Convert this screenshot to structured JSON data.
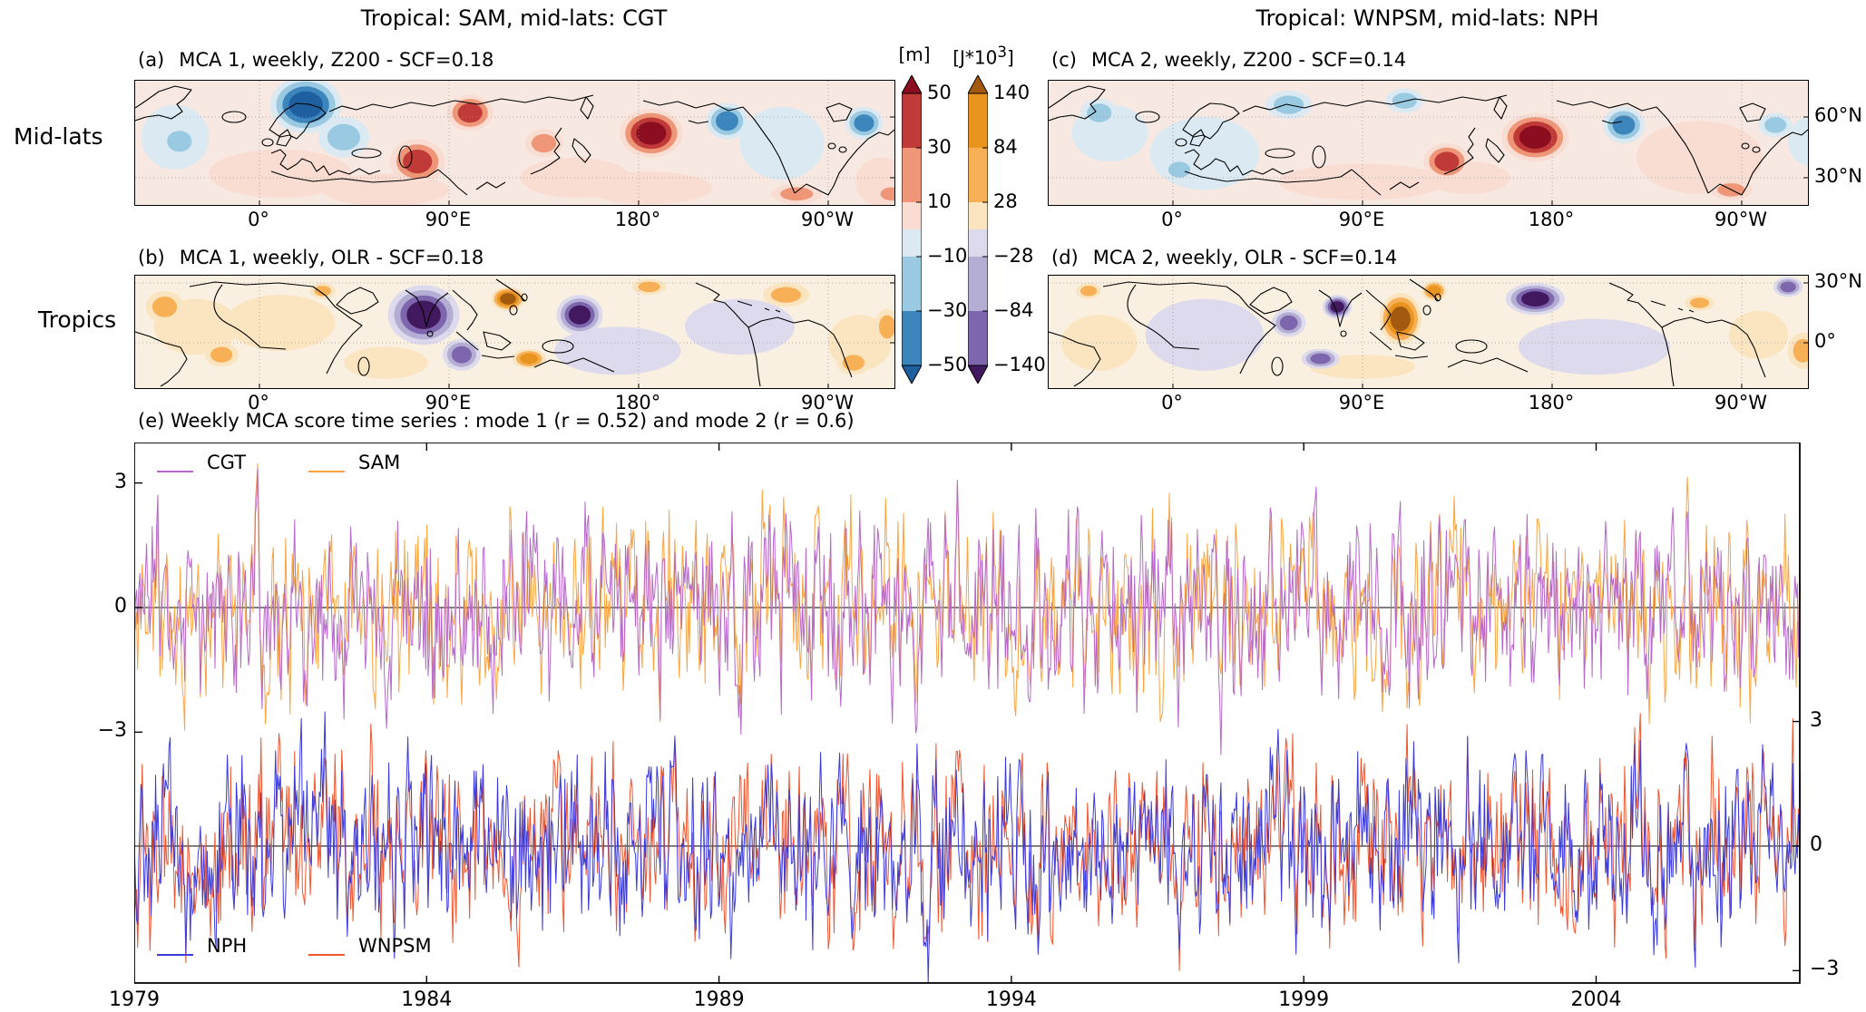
{
  "figure": {
    "left_column_title": "Tropical: SAM, mid-lats: CGT",
    "right_column_title": "Tropical: WNPSM, mid-lats: NPH",
    "row_label_top": "Mid-lats",
    "row_label_bottom": "Tropics"
  },
  "panels": {
    "a": {
      "label": "(a)",
      "title": "MCA 1, weekly, Z200 - SCF=0.18"
    },
    "b": {
      "label": "(b)",
      "title": "MCA 1, weekly, OLR - SCF=0.18"
    },
    "c": {
      "label": "(c)",
      "title": "MCA 2, weekly, Z200 - SCF=0.14"
    },
    "d": {
      "label": "(d)",
      "title": "MCA 2, weekly, OLR - SCF=0.14"
    },
    "e": {
      "title": "(e) Weekly MCA score time series : mode 1 (r = 0.52) and mode 2 (r = 0.6)"
    }
  },
  "colorbars": {
    "z200": {
      "unit": "[m]",
      "ticks": [
        "50",
        "30",
        "10",
        "−10",
        "−30",
        "−50"
      ],
      "band_colors_top_to_bottom": [
        "#8c0d20",
        "#c03a38",
        "#ee9677",
        "#f9ddd3",
        "#dbe9f3",
        "#9ac9e2",
        "#3d85bd",
        "#1e5fa0"
      ]
    },
    "olr": {
      "unit_pre": "[J*10",
      "unit_sup": "3",
      "unit_post": "]",
      "ticks": [
        "140",
        "84",
        "28",
        "−28",
        "−84",
        "−140"
      ],
      "band_colors_top_to_bottom": [
        "#a45a0e",
        "#e8941f",
        "#f7b055",
        "#fbe4c0",
        "#dcdaec",
        "#b5aed4",
        "#7d66ad",
        "#42185e"
      ]
    }
  },
  "chart_data": {
    "type": "composite",
    "maps": [
      {
        "panel": "a",
        "type": "filled_contour_map",
        "variable": "Z200",
        "units": "m",
        "title": "MCA 1, weekly, Z200 - SCF=0.18",
        "scf": 0.18,
        "palette": "z200",
        "row": "midlat",
        "lon_ticks": [
          "0°",
          "90°E",
          "180°",
          "90°W"
        ],
        "lat_ticks": [
          "60°N",
          "30°N"
        ],
        "contour_levels": [
          -50,
          -30,
          -10,
          10,
          30,
          50
        ],
        "anomalies": [
          {
            "lon": -40,
            "lat": 50,
            "rlon": 16,
            "rlat": 16,
            "peak": -5
          },
          {
            "lon": 10,
            "lat": 32,
            "rlon": 34,
            "rlat": 12,
            "peak": 5
          },
          {
            "lon": 60,
            "lat": 24,
            "rlon": 30,
            "rlat": 8,
            "peak": 5
          },
          {
            "lon": 150,
            "lat": 30,
            "rlon": 26,
            "rlat": 10,
            "peak": 5
          },
          {
            "lon": 185,
            "lat": 25,
            "rlon": 30,
            "rlat": 8,
            "peak": 5
          },
          {
            "lon": 248,
            "lat": 47,
            "rlon": 20,
            "rlat": 18,
            "peak": -5
          },
          {
            "lon": 295,
            "lat": 28,
            "rlon": 12,
            "rlat": 12,
            "peak": 5
          },
          {
            "lon": -38,
            "lat": 48,
            "rlon": 9,
            "rlat": 8,
            "peak": -15
          },
          {
            "lon": 40,
            "lat": 50,
            "rlon": 12,
            "rlat": 10,
            "peak": -15
          },
          {
            "lon": 22,
            "lat": 66,
            "rlon": 17,
            "rlat": 14,
            "peak": -55
          },
          {
            "lon": 75,
            "lat": 38,
            "rlon": 13,
            "rlat": 11,
            "peak": 35
          },
          {
            "lon": 100,
            "lat": 62,
            "rlon": 11,
            "rlat": 9,
            "peak": 35
          },
          {
            "lon": 135,
            "lat": 47,
            "rlon": 9,
            "rlat": 7,
            "peak": 15
          },
          {
            "lon": 186,
            "lat": 52,
            "rlon": 15,
            "rlat": 12,
            "peak": 55
          },
          {
            "lon": 222,
            "lat": 58,
            "rlon": 10,
            "rlat": 9,
            "peak": -35
          },
          {
            "lon": 287,
            "lat": 57,
            "rlon": 9,
            "rlat": 8,
            "peak": -35
          },
          {
            "lon": 255,
            "lat": 22,
            "rlon": 12,
            "rlat": 5,
            "peak": 15
          },
          {
            "lon": 300,
            "lat": 22,
            "rlon": 8,
            "rlat": 5,
            "peak": 15
          }
        ]
      },
      {
        "panel": "b",
        "type": "filled_contour_map",
        "variable": "OLR",
        "units": "J*10^3",
        "title": "MCA 1, weekly, OLR - SCF=0.18",
        "scf": 0.18,
        "palette": "olr",
        "row": "tropic",
        "lon_ticks": [
          "0°",
          "90°E",
          "180°",
          "90°W"
        ],
        "lat_ticks": [
          "30°N",
          "0°"
        ],
        "contour_levels": [
          -140,
          -84,
          -28,
          28,
          84,
          140
        ],
        "anomalies": [
          {
            "lon": -30,
            "lat": 8,
            "rlon": 20,
            "rlat": 14,
            "peak": 15
          },
          {
            "lon": 10,
            "lat": 10,
            "rlon": 26,
            "rlat": 14,
            "peak": 15
          },
          {
            "lon": 60,
            "lat": -10,
            "rlon": 20,
            "rlat": 8,
            "peak": 15
          },
          {
            "lon": 170,
            "lat": -4,
            "rlon": 30,
            "rlat": 12,
            "peak": -15
          },
          {
            "lon": 228,
            "lat": 8,
            "rlon": 26,
            "rlat": 14,
            "peak": -15
          },
          {
            "lon": 285,
            "lat": 0,
            "rlon": 15,
            "rlat": 14,
            "peak": 15
          },
          {
            "lon": -45,
            "lat": 18,
            "rlon": 9,
            "rlat": 8,
            "peak": 42
          },
          {
            "lon": -18,
            "lat": -6,
            "rlon": 8,
            "rlat": 6,
            "peak": 42
          },
          {
            "lon": 30,
            "lat": 26,
            "rlon": 6,
            "rlat": 4,
            "peak": 30
          },
          {
            "lon": 78,
            "lat": 14,
            "rlon": 17,
            "rlat": 15,
            "peak": -160
          },
          {
            "lon": 96,
            "lat": -6,
            "rlon": 9,
            "rlat": 8,
            "peak": -90
          },
          {
            "lon": 118,
            "lat": 22,
            "rlon": 8,
            "rlat": 6,
            "peak": 150
          },
          {
            "lon": 128,
            "lat": -8,
            "rlon": 8,
            "rlat": 5,
            "peak": 90
          },
          {
            "lon": 152,
            "lat": 14,
            "rlon": 11,
            "rlat": 10,
            "peak": -150
          },
          {
            "lon": 185,
            "lat": 28,
            "rlon": 8,
            "rlat": 4,
            "peak": 40
          },
          {
            "lon": 250,
            "lat": 24,
            "rlon": 11,
            "rlat": 6,
            "peak": 60
          },
          {
            "lon": 282,
            "lat": -10,
            "rlon": 8,
            "rlat": 6,
            "peak": 60
          },
          {
            "lon": 298,
            "lat": 8,
            "rlon": 6,
            "rlat": 9,
            "peak": 42
          }
        ]
      },
      {
        "panel": "c",
        "type": "filled_contour_map",
        "variable": "Z200",
        "units": "m",
        "title": "MCA 2, weekly, Z200 - SCF=0.14",
        "scf": 0.14,
        "palette": "z200",
        "row": "midlat",
        "lon_ticks": [
          "0°",
          "90°E",
          "180°",
          "90°W"
        ],
        "lat_ticks": [
          "60°N",
          "30°N"
        ],
        "contour_levels": [
          -50,
          -30,
          -10,
          10,
          30,
          50
        ],
        "anomalies": [
          {
            "lon": -30,
            "lat": 52,
            "rlon": 18,
            "rlat": 14,
            "peak": -5
          },
          {
            "lon": 15,
            "lat": 42,
            "rlon": 26,
            "rlat": 18,
            "peak": -5
          },
          {
            "lon": 90,
            "lat": 28,
            "rlon": 40,
            "rlat": 9,
            "peak": 5
          },
          {
            "lon": 140,
            "lat": 30,
            "rlon": 20,
            "rlat": 8,
            "peak": 5
          },
          {
            "lon": 250,
            "lat": 40,
            "rlon": 30,
            "rlat": 18,
            "peak": 5
          },
          {
            "lon": 302,
            "lat": 48,
            "rlon": 10,
            "rlat": 12,
            "peak": -5
          },
          {
            "lon": -35,
            "lat": 62,
            "rlon": 9,
            "rlat": 7,
            "peak": -15
          },
          {
            "lon": 3,
            "lat": 34,
            "rlon": 8,
            "rlat": 6,
            "peak": -15
          },
          {
            "lon": 55,
            "lat": 66,
            "rlon": 11,
            "rlat": 7,
            "peak": -15
          },
          {
            "lon": 110,
            "lat": 68,
            "rlon": 9,
            "rlat": 6,
            "peak": -15
          },
          {
            "lon": 130,
            "lat": 38,
            "rlon": 11,
            "rlat": 9,
            "peak": 40
          },
          {
            "lon": 172,
            "lat": 50,
            "rlon": 16,
            "rlat": 12,
            "peak": 58
          },
          {
            "lon": 214,
            "lat": 56,
            "rlon": 10,
            "rlat": 9,
            "peak": -32
          },
          {
            "lon": 286,
            "lat": 56,
            "rlon": 8,
            "rlat": 6,
            "peak": -15
          },
          {
            "lon": 265,
            "lat": 24,
            "rlon": 10,
            "rlat": 5,
            "peak": 12
          }
        ]
      },
      {
        "panel": "d",
        "type": "filled_contour_map",
        "variable": "OLR",
        "units": "J*10^3",
        "title": "MCA 2, weekly, OLR - SCF=0.14",
        "scf": 0.14,
        "palette": "olr",
        "row": "tropic",
        "lon_ticks": [
          "0°",
          "90°E",
          "180°",
          "90°W"
        ],
        "lat_ticks": [
          "30°N",
          "0°"
        ],
        "contour_levels": [
          -140,
          -84,
          -28,
          28,
          84,
          140
        ],
        "anomalies": [
          {
            "lon": -35,
            "lat": 0,
            "rlon": 18,
            "rlat": 14,
            "peak": 15
          },
          {
            "lon": 15,
            "lat": 4,
            "rlon": 28,
            "rlat": 18,
            "peak": -15
          },
          {
            "lon": 90,
            "lat": -12,
            "rlon": 25,
            "rlat": 6,
            "peak": 15
          },
          {
            "lon": 200,
            "lat": -2,
            "rlon": 36,
            "rlat": 14,
            "peak": -15
          },
          {
            "lon": 278,
            "lat": 4,
            "rlon": 14,
            "rlat": 12,
            "peak": 15
          },
          {
            "lon": -40,
            "lat": 26,
            "rlon": 6,
            "rlat": 4,
            "peak": 30
          },
          {
            "lon": 55,
            "lat": 10,
            "rlon": 8,
            "rlat": 7,
            "peak": -90
          },
          {
            "lon": 78,
            "lat": 18,
            "rlon": 7,
            "rlat": 6,
            "peak": -160
          },
          {
            "lon": 70,
            "lat": -8,
            "rlon": 9,
            "rlat": 5,
            "peak": -90
          },
          {
            "lon": 108,
            "lat": 12,
            "rlon": 10,
            "rlat": 13,
            "peak": 150
          },
          {
            "lon": 124,
            "lat": 26,
            "rlon": 6,
            "rlat": 5,
            "peak": 90
          },
          {
            "lon": 172,
            "lat": 22,
            "rlon": 14,
            "rlat": 8,
            "peak": -170
          },
          {
            "lon": 250,
            "lat": 20,
            "rlon": 7,
            "rlat": 4,
            "peak": 30
          },
          {
            "lon": 292,
            "lat": 28,
            "rlon": 7,
            "rlat": 5,
            "peak": -90
          },
          {
            "lon": 299,
            "lat": -4,
            "rlon": 7,
            "rlat": 9,
            "peak": 60
          }
        ]
      }
    ],
    "timeseries": {
      "type": "line",
      "title": "(e) Weekly MCA score time series : mode 1 (r = 0.52) and mode 2 (r = 0.6)",
      "x_start": 1979,
      "x_end": 2007.5,
      "sampling": "weekly",
      "n_points": 1487,
      "x_ticks": [
        "1979",
        "1984",
        "1989",
        "1994",
        "1999",
        "2004"
      ],
      "left_y_ticks": [
        "3",
        "0",
        "−3"
      ],
      "right_y_ticks": [
        "3",
        "0",
        "−3"
      ],
      "ylim": [
        -4,
        4
      ],
      "mode1": {
        "r": 0.52,
        "series": [
          {
            "name": "CGT",
            "color": "#b668c9"
          },
          {
            "name": "SAM",
            "color": "#fba33f"
          }
        ]
      },
      "mode2": {
        "r": 0.6,
        "series": [
          {
            "name": "NPH",
            "color": "#3b3bdc"
          },
          {
            "name": "WNPSM",
            "color": "#f0552e"
          }
        ]
      },
      "note": "weekly standardized MCA scores, values span roughly -4 to +4"
    }
  }
}
